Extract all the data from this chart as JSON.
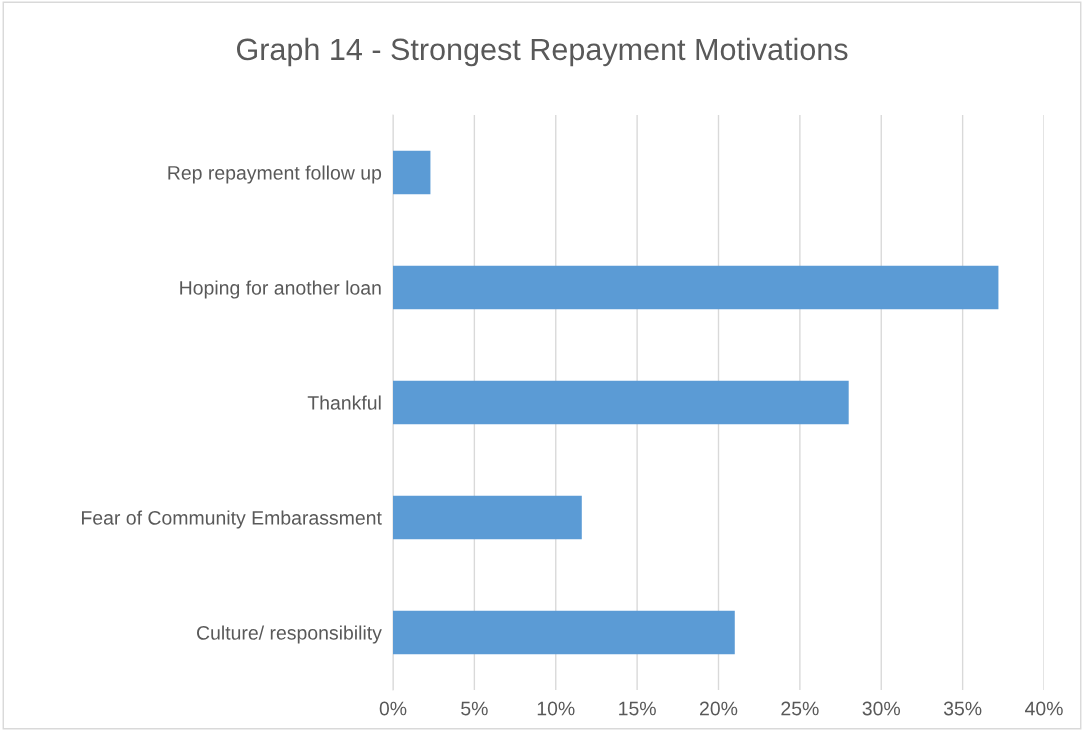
{
  "chart_data": {
    "type": "bar",
    "orientation": "horizontal",
    "title": "Graph 14 - Strongest Repayment Motivations",
    "categories": [
      "Rep repayment follow up",
      "Hoping for another loan",
      "Thankful",
      "Fear of Community Embarassment",
      "Culture/ responsibility"
    ],
    "values": [
      2.3,
      37.2,
      28.0,
      11.6,
      21.0
    ],
    "color": "#5b9bd5",
    "xlim": [
      0,
      40
    ],
    "xticks": [
      {
        "value": 0,
        "label": "0%"
      },
      {
        "value": 5,
        "label": "5%"
      },
      {
        "value": 10,
        "label": "10%"
      },
      {
        "value": 15,
        "label": "15%"
      },
      {
        "value": 20,
        "label": "20%"
      },
      {
        "value": 25,
        "label": "25%"
      },
      {
        "value": 30,
        "label": "30%"
      },
      {
        "value": 35,
        "label": "35%"
      },
      {
        "value": 40,
        "label": "40%"
      }
    ],
    "grid": "x",
    "legend": false
  }
}
